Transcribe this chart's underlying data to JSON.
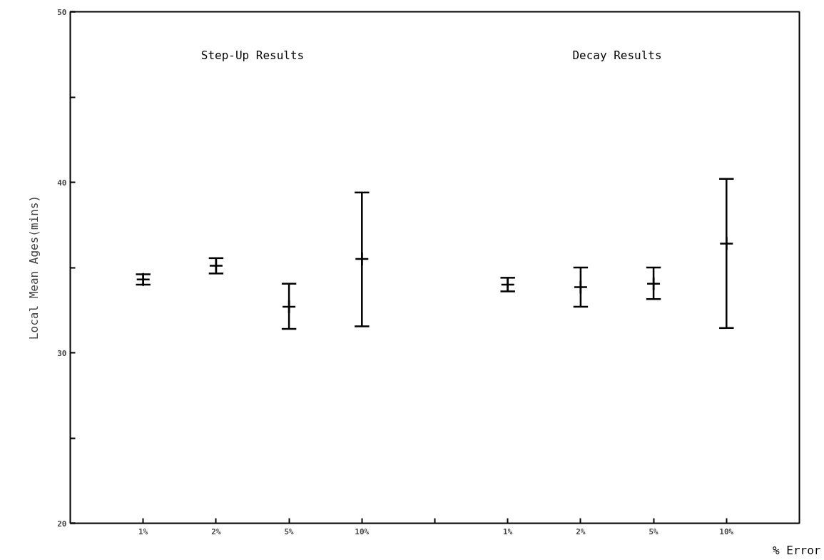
{
  "chart_data": {
    "type": "scatter",
    "categories": [
      "1%",
      "2%",
      "5%",
      "10%",
      null,
      "1%",
      "2%",
      "5%",
      "10%"
    ],
    "values": [
      34.3,
      35.1,
      32.7,
      35.5,
      null,
      34.0,
      33.85,
      34.05,
      36.4
    ],
    "errors": [
      [
        34.0,
        34.6
      ],
      [
        34.65,
        35.55
      ],
      [
        31.4,
        34.05
      ],
      [
        31.55,
        39.4
      ],
      null,
      [
        33.6,
        34.4
      ],
      [
        32.7,
        35.0
      ],
      [
        33.15,
        35.0
      ],
      [
        31.45,
        40.2
      ]
    ],
    "color": "#000000",
    "marker": "cross",
    "xlabel": "% Error",
    "ylabel": "Local Mean Ages(mins)",
    "annotations": [
      "Step-Up Results",
      "Decay Results"
    ],
    "ylim": [
      20,
      50
    ],
    "yticks": [
      20,
      {
        "value": 25,
        "label": null
      },
      30,
      {
        "value": 35,
        "label": null
      },
      40,
      {
        "value": 45,
        "label": null
      },
      50
    ],
    "grid": false
  }
}
